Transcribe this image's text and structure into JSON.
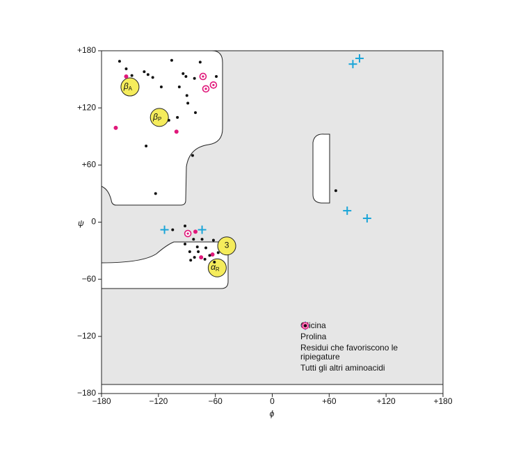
{
  "chart_data": {
    "type": "scatter",
    "x_label": "ϕ",
    "y_label": "ψ",
    "xlim": [
      -180,
      180
    ],
    "ylim": [
      -180,
      180
    ],
    "xticks": [
      {
        "value": -180,
        "label": "−180"
      },
      {
        "value": -120,
        "label": "−120"
      },
      {
        "value": -60,
        "label": "−60"
      },
      0,
      {
        "value": 60,
        "label": "+60"
      },
      {
        "value": 120,
        "label": "+120"
      },
      {
        "value": 180,
        "label": "+180"
      }
    ],
    "yticks": [
      {
        "value": 180,
        "label": "+180"
      },
      {
        "value": 120,
        "label": "+120"
      },
      {
        "value": 60,
        "label": "+60"
      },
      0,
      {
        "value": -60,
        "label": "−60"
      },
      {
        "value": -120,
        "label": "−120"
      },
      {
        "value": -180,
        "label": "−180"
      }
    ],
    "annotations": [
      {
        "text": "β",
        "sub": "A",
        "x": -150,
        "y": 142
      },
      {
        "text": "β",
        "sub": "P",
        "x": -119,
        "y": 110
      },
      {
        "text": "3",
        "sub": "",
        "x": -48,
        "y": -25
      },
      {
        "text": "α",
        "sub": "R",
        "x": -58,
        "y": -48
      }
    ],
    "series": [
      {
        "name": "Glicina",
        "marker": "plus",
        "color": "#1aa5d8",
        "x": [
          -113.6,
          -74,
          85,
          92,
          79,
          100
        ],
        "values": [
          -8,
          -8,
          166,
          172,
          12,
          4
        ]
      },
      {
        "name": "Prolina",
        "marker": "ring",
        "color": "#e0187a",
        "x": [
          -73,
          -62,
          -70,
          -89
        ],
        "values": [
          153,
          144,
          140,
          -12
        ]
      },
      {
        "name": "Residui che favoriscono le ripiegature",
        "marker": "dot",
        "color": "#e0187a",
        "x": [
          -154,
          -165,
          -101,
          -81,
          -75,
          -63
        ],
        "values": [
          153,
          99,
          95,
          -10,
          -37,
          -34
        ]
      },
      {
        "name": "Tutti gli altri aminoacidi",
        "marker": "small-dot",
        "color": "#111111",
        "x": [
          -161,
          -154,
          -148,
          -135,
          -131,
          -126,
          -106,
          -76,
          -94,
          -91,
          -82,
          -59,
          -117,
          -98,
          -90,
          -89,
          -81,
          -100,
          -109,
          -133,
          -84,
          -123,
          67,
          -105,
          -92,
          -92,
          -83,
          -74,
          -70,
          -62,
          -87,
          -79,
          -86,
          -78,
          -71,
          -66,
          -57,
          -61,
          -82
        ],
        "values": [
          169,
          161,
          154,
          158,
          155,
          152,
          170,
          168,
          156,
          153,
          151,
          153,
          142,
          142,
          133,
          125,
          115,
          110,
          107,
          80,
          70,
          30,
          33,
          -8,
          -4,
          -23,
          -18,
          -18,
          -27,
          -19,
          -31,
          -26,
          -40,
          -31,
          -39,
          -35,
          -32,
          -42,
          -37
        ]
      }
    ]
  }
}
